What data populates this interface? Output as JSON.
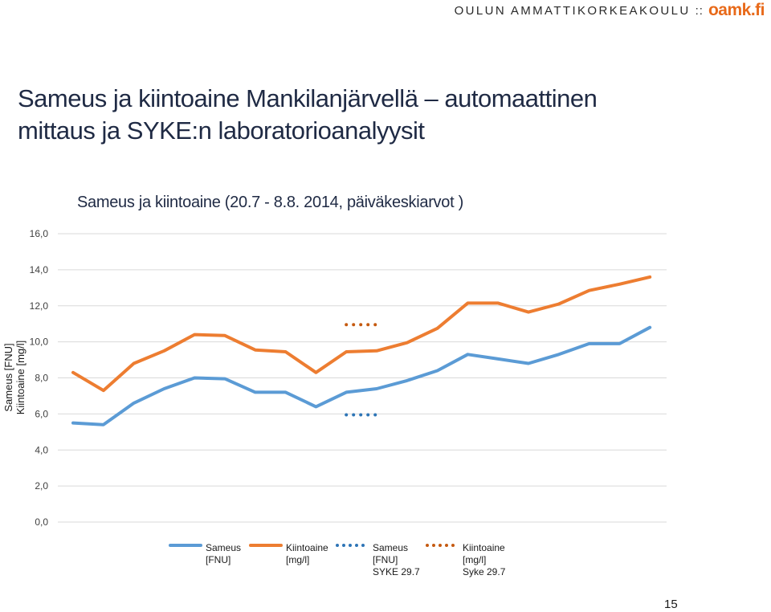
{
  "brand": {
    "text": "OULUN AMMATTIKORKEAKOULU",
    "separator": "::",
    "logo": "oamk.fi",
    "logo_color": "#e86a1a"
  },
  "slide": {
    "title_line1": "Sameus ja kiintoaine Mankilanjärvellä – automaattinen",
    "title_line2": "mittaus ja SYKE:n laboratorioanalyysit",
    "page_number": "15"
  },
  "chart_data": {
    "type": "line",
    "title": "Sameus ja kiintoaine (20.7 - 8.8. 2014, päiväkeskiarvot )",
    "ylabel_lines": [
      "Sameus [FNU]",
      "Kiintoaine [mg/l]"
    ],
    "xlabel": "",
    "ylim": [
      0,
      16
    ],
    "yticks": [
      0,
      2,
      4,
      6,
      8,
      10,
      12,
      14,
      16
    ],
    "ytick_labels": [
      "0,0",
      "2,0",
      "4,0",
      "6,0",
      "8,0",
      "10,0",
      "12,0",
      "14,0",
      "16,0"
    ],
    "grid": "horizontal",
    "legend_position": "bottom",
    "x": [
      1,
      2,
      3,
      4,
      5,
      6,
      7,
      8,
      9,
      10,
      11,
      12,
      13,
      14,
      15,
      16,
      17,
      18,
      19,
      20
    ],
    "series": [
      {
        "name": "Sameus [FNU]",
        "legend_lines": [
          "Sameus",
          "[FNU]"
        ],
        "style": "solid",
        "color": "#5b9bd5",
        "x": [
          1,
          2,
          3,
          4,
          5,
          6,
          7,
          8,
          9,
          10,
          11,
          12,
          13,
          14,
          15,
          16,
          17,
          18,
          19,
          20
        ],
        "values": [
          5.5,
          5.4,
          6.6,
          7.4,
          8.0,
          7.95,
          7.2,
          7.2,
          6.4,
          7.2,
          7.4,
          7.85,
          8.4,
          9.3,
          9.05,
          8.8,
          9.3,
          9.9,
          9.9,
          10.8
        ]
      },
      {
        "name": "Kiintoaine [mg/l]",
        "legend_lines": [
          "Kiintoaine",
          "[mg/l]"
        ],
        "style": "solid",
        "color": "#ed7d31",
        "x": [
          1,
          2,
          3,
          4,
          5,
          6,
          7,
          8,
          9,
          10,
          11,
          12,
          13,
          14,
          15,
          16,
          17,
          18,
          19,
          20
        ],
        "values": [
          8.3,
          7.3,
          8.8,
          9.5,
          10.4,
          10.35,
          9.55,
          9.45,
          8.3,
          9.45,
          9.5,
          9.95,
          10.75,
          12.15,
          12.15,
          11.65,
          12.1,
          12.85,
          13.2,
          13.6
        ]
      },
      {
        "name": "Sameus [FNU] SYKE 29.7",
        "legend_lines": [
          "Sameus",
          "[FNU]",
          "SYKE 29.7"
        ],
        "style": "dotted",
        "color": "#2e75b6",
        "x": [
          10,
          11
        ],
        "values": [
          5.95,
          5.95
        ]
      },
      {
        "name": "Kiintoaine [mg/l] Syke 29.7",
        "legend_lines": [
          "Kiintoaine",
          "[mg/l]",
          "Syke 29.7"
        ],
        "style": "dotted",
        "color": "#c55a11",
        "x": [
          10,
          11
        ],
        "values": [
          10.95,
          10.95
        ]
      }
    ]
  }
}
